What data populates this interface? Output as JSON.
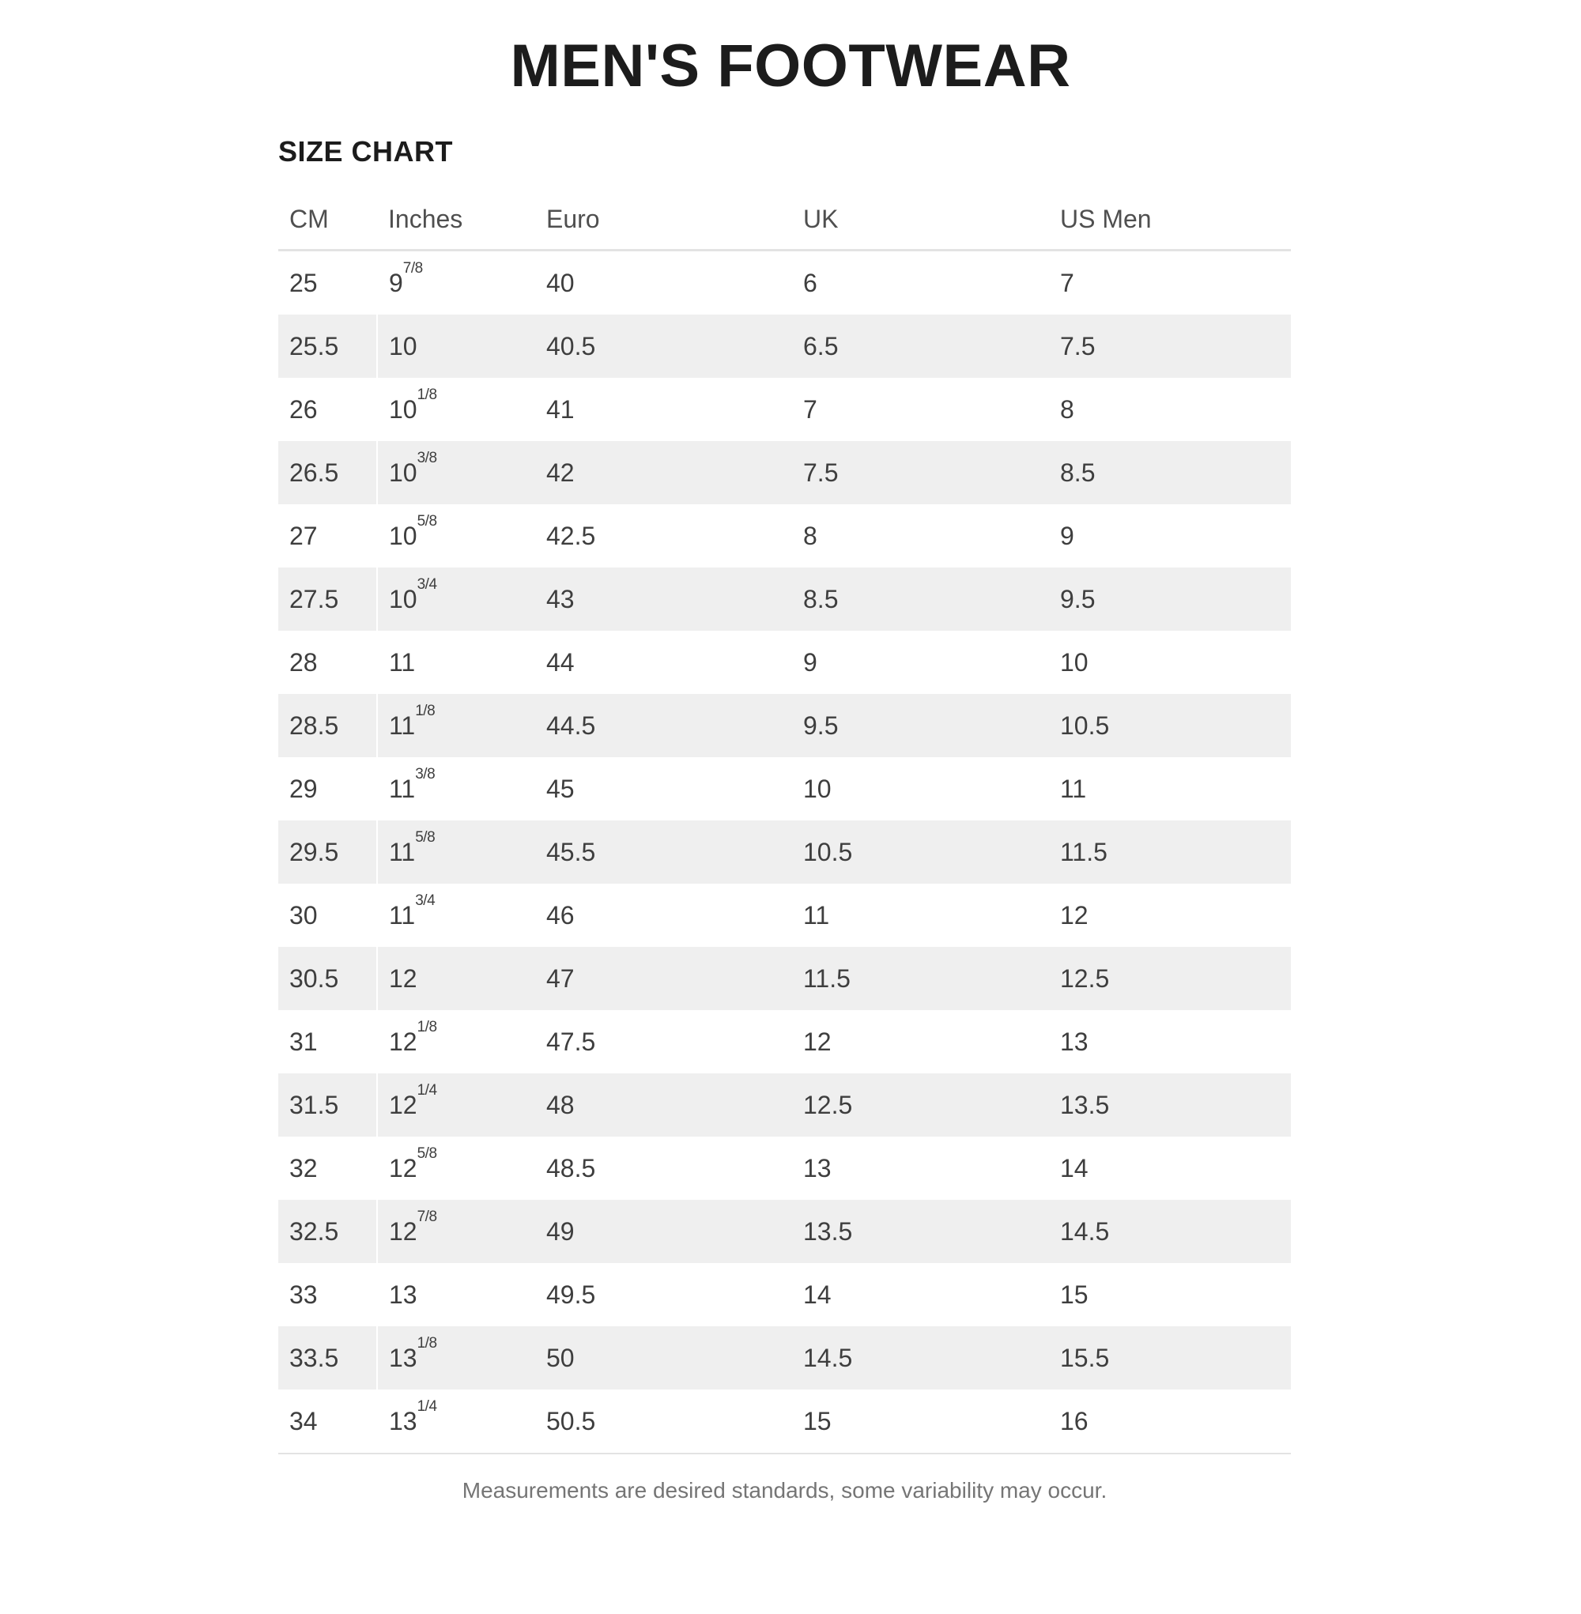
{
  "page": {
    "title": "MEN'S FOOTWEAR",
    "section_title": "SIZE CHART",
    "footnote": "Measurements are desired standards, some variability may occur."
  },
  "colors": {
    "background": "#ffffff",
    "stripe_row": "#efefef",
    "border": "#e3e3e3",
    "title_text": "#1c1c1c",
    "header_text": "#4f4f4f",
    "body_text": "#3e3e3e",
    "footnote_text": "#757575"
  },
  "chart_data": {
    "type": "table",
    "title": "MEN'S FOOTWEAR — SIZE CHART",
    "columns": [
      "CM",
      "Inches",
      "Euro",
      "UK",
      "US Men"
    ],
    "rows": [
      [
        "25",
        "9 7/8",
        "40",
        "6",
        "7"
      ],
      [
        "25.5",
        "10",
        "40.5",
        "6.5",
        "7.5"
      ],
      [
        "26",
        "10 1/8",
        "41",
        "7",
        "8"
      ],
      [
        "26.5",
        "10 3/8",
        "42",
        "7.5",
        "8.5"
      ],
      [
        "27",
        "10 5/8",
        "42.5",
        "8",
        "9"
      ],
      [
        "27.5",
        "10 3/4",
        "43",
        "8.5",
        "9.5"
      ],
      [
        "28",
        "11",
        "44",
        "9",
        "10"
      ],
      [
        "28.5",
        "11 1/8",
        "44.5",
        "9.5",
        "10.5"
      ],
      [
        "29",
        "11 3/8",
        "45",
        "10",
        "11"
      ],
      [
        "29.5",
        "11 5/8",
        "45.5",
        "10.5",
        "11.5"
      ],
      [
        "30",
        "11 3/4",
        "46",
        "11",
        "12"
      ],
      [
        "30.5",
        "12",
        "47",
        "11.5",
        "12.5"
      ],
      [
        "31",
        "12 1/8",
        "47.5",
        "12",
        "13"
      ],
      [
        "31.5",
        "12 1/4",
        "48",
        "12.5",
        "13.5"
      ],
      [
        "32",
        "12 5/8",
        "48.5",
        "13",
        "14"
      ],
      [
        "32.5",
        "12 7/8",
        "49",
        "13.5",
        "14.5"
      ],
      [
        "33",
        "13",
        "49.5",
        "14",
        "15"
      ],
      [
        "33.5",
        "13 1/8",
        "50",
        "14.5",
        "15.5"
      ],
      [
        "34",
        "13 1/4",
        "50.5",
        "15",
        "16"
      ]
    ]
  }
}
